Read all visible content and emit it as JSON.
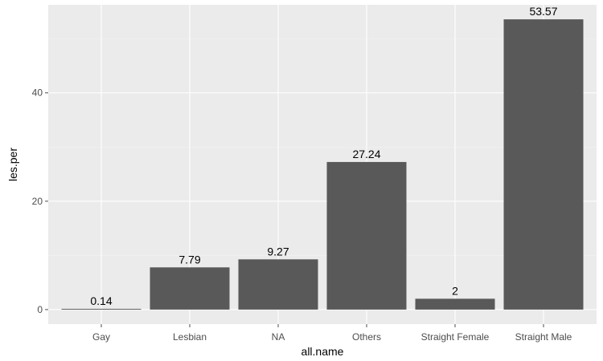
{
  "chart_data": {
    "type": "bar",
    "categories": [
      "Gay",
      "Lesbian",
      "NA",
      "Others",
      "Straight Female",
      "Straight Male"
    ],
    "values": [
      0.14,
      7.79,
      9.27,
      27.24,
      2,
      53.57
    ],
    "data_labels": [
      "0.14",
      "7.79",
      "9.27",
      "27.24",
      "2",
      "53.57"
    ],
    "xlabel": "all.name",
    "ylabel": "les.per",
    "ylim": [
      -2.68,
      56.25
    ],
    "yticks": [
      0,
      20,
      40
    ],
    "ytick_labels": [
      "0",
      "20",
      "40"
    ],
    "grid": true,
    "colors": {
      "bar": "#595959",
      "panel": "#ebebeb",
      "grid_major": "#ffffff",
      "grid_minor": "#f2f2f2",
      "tick": "#4d4d4d"
    }
  }
}
